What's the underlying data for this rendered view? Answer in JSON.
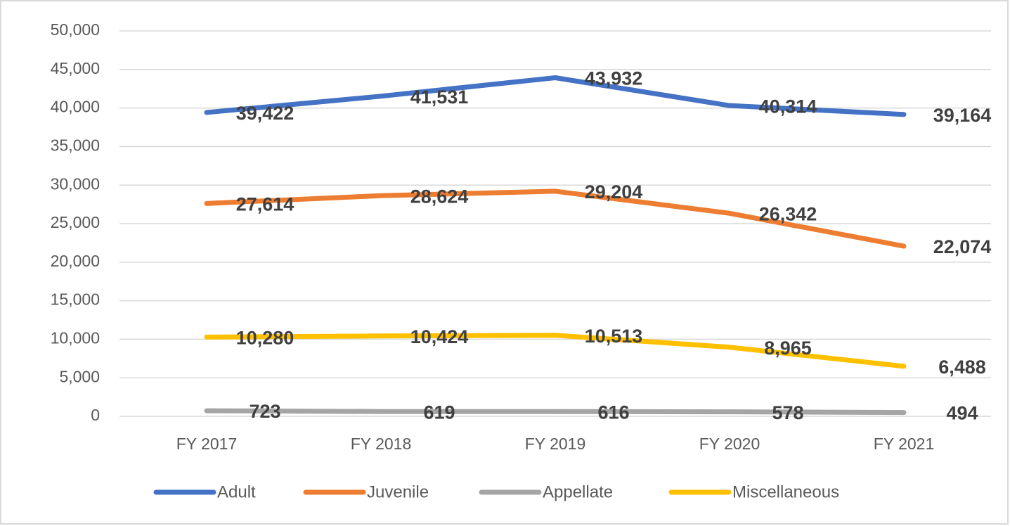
{
  "chart_data": {
    "type": "line",
    "categories": [
      "FY 2017",
      "FY 2018",
      "FY 2019",
      "FY 2020",
      "FY 2021"
    ],
    "series": [
      {
        "name": "Adult",
        "color": "#4472c4",
        "values": [
          39422,
          41531,
          43932,
          40314,
          39164
        ],
        "value_labels": [
          "39,422",
          "41,531",
          "43,932",
          "40,314",
          "39,164"
        ]
      },
      {
        "name": "Juvenile",
        "color": "#ed7d31",
        "values": [
          27614,
          28624,
          29204,
          26342,
          22074
        ],
        "value_labels": [
          "27,614",
          "28,624",
          "29,204",
          "26,342",
          "22,074"
        ]
      },
      {
        "name": "Appellate",
        "color": "#a5a5a5",
        "values": [
          723,
          619,
          616,
          578,
          494
        ],
        "value_labels": [
          "723",
          "619",
          "616",
          "578",
          "494"
        ]
      },
      {
        "name": "Miscellaneous",
        "color": "#ffc000",
        "values": [
          10280,
          10424,
          10513,
          8965,
          6488
        ],
        "value_labels": [
          "10,280",
          "10,424",
          "10,513",
          "8,965",
          "6,488"
        ]
      }
    ],
    "ylim": [
      0,
      50000
    ],
    "yticks": [
      0,
      {
        "value": 5000,
        "label": "5,000"
      },
      {
        "value": 10000,
        "label": "10,000"
      },
      {
        "value": 15000,
        "label": "15,000"
      },
      {
        "value": 20000,
        "label": "20,000"
      },
      {
        "value": 25000,
        "label": "25,000"
      },
      {
        "value": 30000,
        "label": "30,000"
      },
      {
        "value": 35000,
        "label": "35,000"
      },
      {
        "value": 40000,
        "label": "40,000"
      },
      {
        "value": 45000,
        "label": "45,000"
      },
      {
        "value": 50000,
        "label": "50,000"
      }
    ],
    "grid": true,
    "legend": "bottom"
  }
}
